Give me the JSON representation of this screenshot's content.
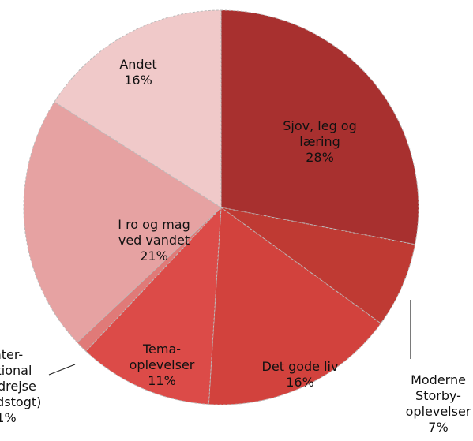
{
  "chart_data": {
    "type": "pie",
    "categories": [
      "Sjov, leg og\nlæring",
      "Moderne\nStorby-\noplevelser",
      "Det gode liv",
      "Tema-\noplevelser",
      "Inter-\nnational\nrundrejse\n(krydstogt)",
      "I ro og mag\nved vandet",
      "Andet"
    ],
    "values": [
      28,
      7,
      16,
      11,
      1,
      21,
      16
    ],
    "value_labels": [
      "28%",
      "7%",
      "16%",
      "11%",
      "1%",
      "21%",
      "16%"
    ],
    "colors": [
      "#a8302f",
      "#bf3a33",
      "#d2423d",
      "#dc4b48",
      "#e07a78",
      "#e6a2a2",
      "#f0c9c9"
    ]
  }
}
